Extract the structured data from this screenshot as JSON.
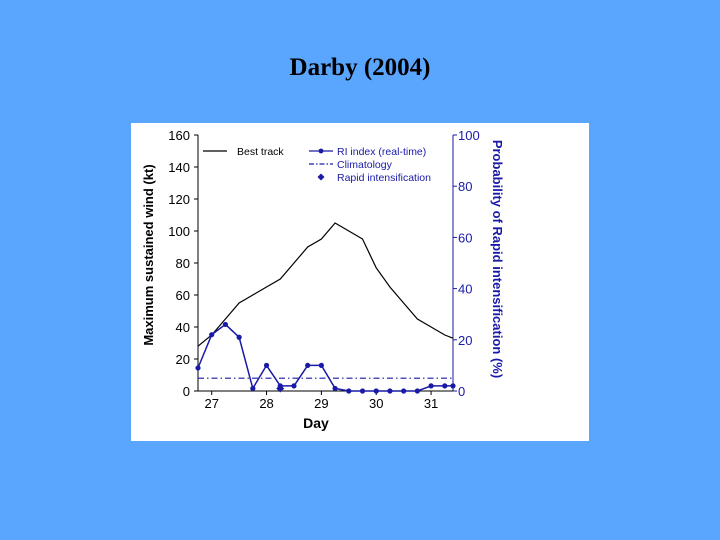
{
  "slide": {
    "title": "Darby (2004)"
  },
  "colors": {
    "background": "#5aa6ff",
    "figure_bg": "#ffffff",
    "left_series": "#000000",
    "right_series": "#1a1aa8"
  },
  "chart_data": {
    "type": "line",
    "title": "",
    "xlabel": "Day",
    "ylabel": "Maximum sustained wind (kt)",
    "y2label": "Probability of Rapid intensification (%)",
    "xlim": [
      26.75,
      31.4
    ],
    "ylim": [
      0,
      160
    ],
    "y2lim": [
      0,
      100
    ],
    "x_ticks": [
      27,
      28,
      29,
      30,
      31
    ],
    "y_ticks": [
      0,
      20,
      40,
      60,
      80,
      100,
      120,
      140,
      160
    ],
    "y2_ticks": [
      0,
      20,
      40,
      60,
      80,
      100
    ],
    "legend_position": "top",
    "series": [
      {
        "name": "Best track",
        "axis": "left",
        "style": "solid",
        "color": "#000000",
        "x": [
          26.75,
          27.0,
          27.25,
          27.5,
          27.75,
          28.0,
          28.25,
          28.5,
          28.75,
          29.0,
          29.25,
          29.5,
          29.75,
          30.0,
          30.25,
          30.5,
          30.75,
          31.0,
          31.25,
          31.4
        ],
        "y": [
          28,
          35,
          45,
          55,
          60,
          65,
          70,
          80,
          90,
          95,
          105,
          100,
          95,
          77,
          65,
          55,
          45,
          40,
          35,
          33
        ]
      },
      {
        "name": "RI index (real-time)",
        "axis": "right",
        "style": "solid-markers",
        "color": "#1a1aa8",
        "x": [
          26.75,
          27.0,
          27.25,
          27.5,
          27.75,
          28.0,
          28.25,
          28.5,
          28.75,
          29.0,
          29.25,
          29.5,
          29.75,
          30.0,
          30.25,
          30.5,
          30.75,
          31.0,
          31.25,
          31.4
        ],
        "y": [
          9,
          22,
          26,
          21,
          1,
          10,
          2,
          2,
          10,
          10,
          1,
          0,
          0,
          0,
          0,
          0,
          0,
          2,
          2,
          2
        ]
      },
      {
        "name": "Climatology",
        "axis": "right",
        "style": "dash-dot",
        "color": "#1a1aa8",
        "x": [
          26.75,
          31.4
        ],
        "y": [
          5,
          5
        ]
      },
      {
        "name": "Rapid intensification",
        "axis": "right",
        "style": "diamond-markers",
        "color": "#1a1aa8",
        "x": [
          28.25
        ],
        "y": [
          1
        ]
      }
    ]
  }
}
